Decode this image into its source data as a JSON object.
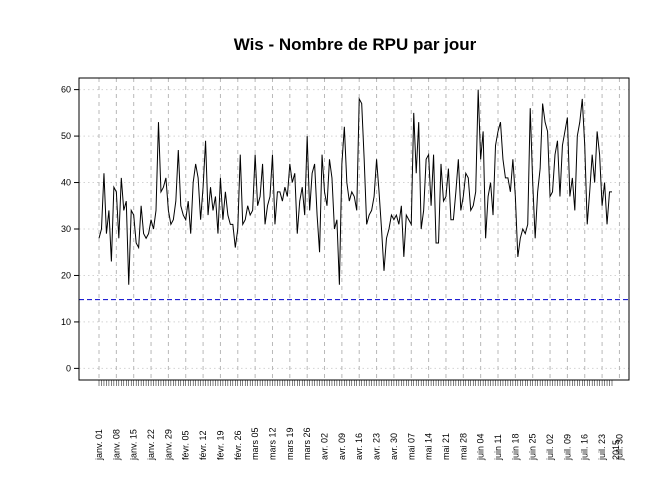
{
  "chart_data": {
    "type": "line",
    "title": "Wis  - Nombre de RPU par jour",
    "xlabel": "",
    "ylabel": "",
    "ylim": [
      -2.5,
      62.5
    ],
    "yticks": [
      0,
      10,
      20,
      30,
      40,
      50,
      60
    ],
    "grid": true,
    "legend": "none",
    "x_start": "2015-01-01",
    "x_end": "2015-07-31",
    "line_color": "#000000",
    "reference_line": {
      "value": 14.8,
      "color": "#0000cc",
      "style": "dashed"
    },
    "tick_labels": [
      "janv. 01",
      "janv. 08",
      "janv. 15",
      "janv. 22",
      "janv. 29",
      "févr. 05",
      "févr. 12",
      "févr. 19",
      "févr. 26",
      "mars 05",
      "mars 12",
      "mars 19",
      "mars 26",
      "avr. 02",
      "avr. 09",
      "avr. 16",
      "avr. 23",
      "avr. 30",
      "mai 07",
      "mai 14",
      "mai 21",
      "mai 28",
      "juin 04",
      "juin 11",
      "juin 18",
      "juin 25",
      "juil. 02",
      "juil. 09",
      "juil. 16",
      "juil. 23",
      "juil. 30",
      "2015"
    ],
    "values": [
      28,
      30,
      42,
      29,
      34,
      23,
      39,
      38,
      28,
      41,
      34,
      36,
      18,
      34,
      33,
      27,
      26,
      35,
      29,
      28,
      29,
      32,
      30,
      34,
      53,
      38,
      39,
      41,
      34,
      31,
      32,
      36,
      47,
      35,
      33,
      32,
      36,
      29,
      40,
      44,
      41,
      32,
      39,
      49,
      33,
      39,
      34,
      37,
      29,
      41,
      32,
      38,
      33,
      31,
      31,
      26,
      30,
      46,
      31,
      32,
      35,
      33,
      34,
      46,
      35,
      37,
      44,
      31,
      35,
      37,
      46,
      31,
      38,
      38,
      36,
      39,
      37,
      44,
      40,
      42,
      29,
      36,
      39,
      33,
      50,
      34,
      42,
      44,
      33,
      25,
      46,
      38,
      35,
      45,
      41,
      30,
      32,
      18,
      44,
      52,
      40,
      36,
      38,
      37,
      34,
      58,
      57,
      45,
      31,
      33,
      34,
      37,
      45,
      38,
      30,
      21,
      28,
      30,
      33,
      32,
      33,
      31,
      35,
      24,
      33,
      32,
      31,
      55,
      42,
      53,
      30,
      34,
      45,
      46,
      35,
      46,
      27,
      27,
      44,
      36,
      37,
      43,
      32,
      32,
      38,
      45,
      34,
      37,
      42,
      41,
      34,
      35,
      38,
      60,
      45,
      51,
      28,
      37,
      40,
      33,
      48,
      51,
      53,
      45,
      41,
      41,
      38,
      45,
      37,
      24,
      28,
      30,
      29,
      31,
      56,
      40,
      28,
      38,
      43,
      57,
      53,
      51,
      37,
      38,
      46,
      49,
      37,
      48,
      51,
      54,
      37,
      41,
      34,
      50,
      53,
      58,
      48,
      31,
      38,
      46,
      40,
      51,
      46,
      35,
      40,
      31,
      38,
      38
    ]
  }
}
